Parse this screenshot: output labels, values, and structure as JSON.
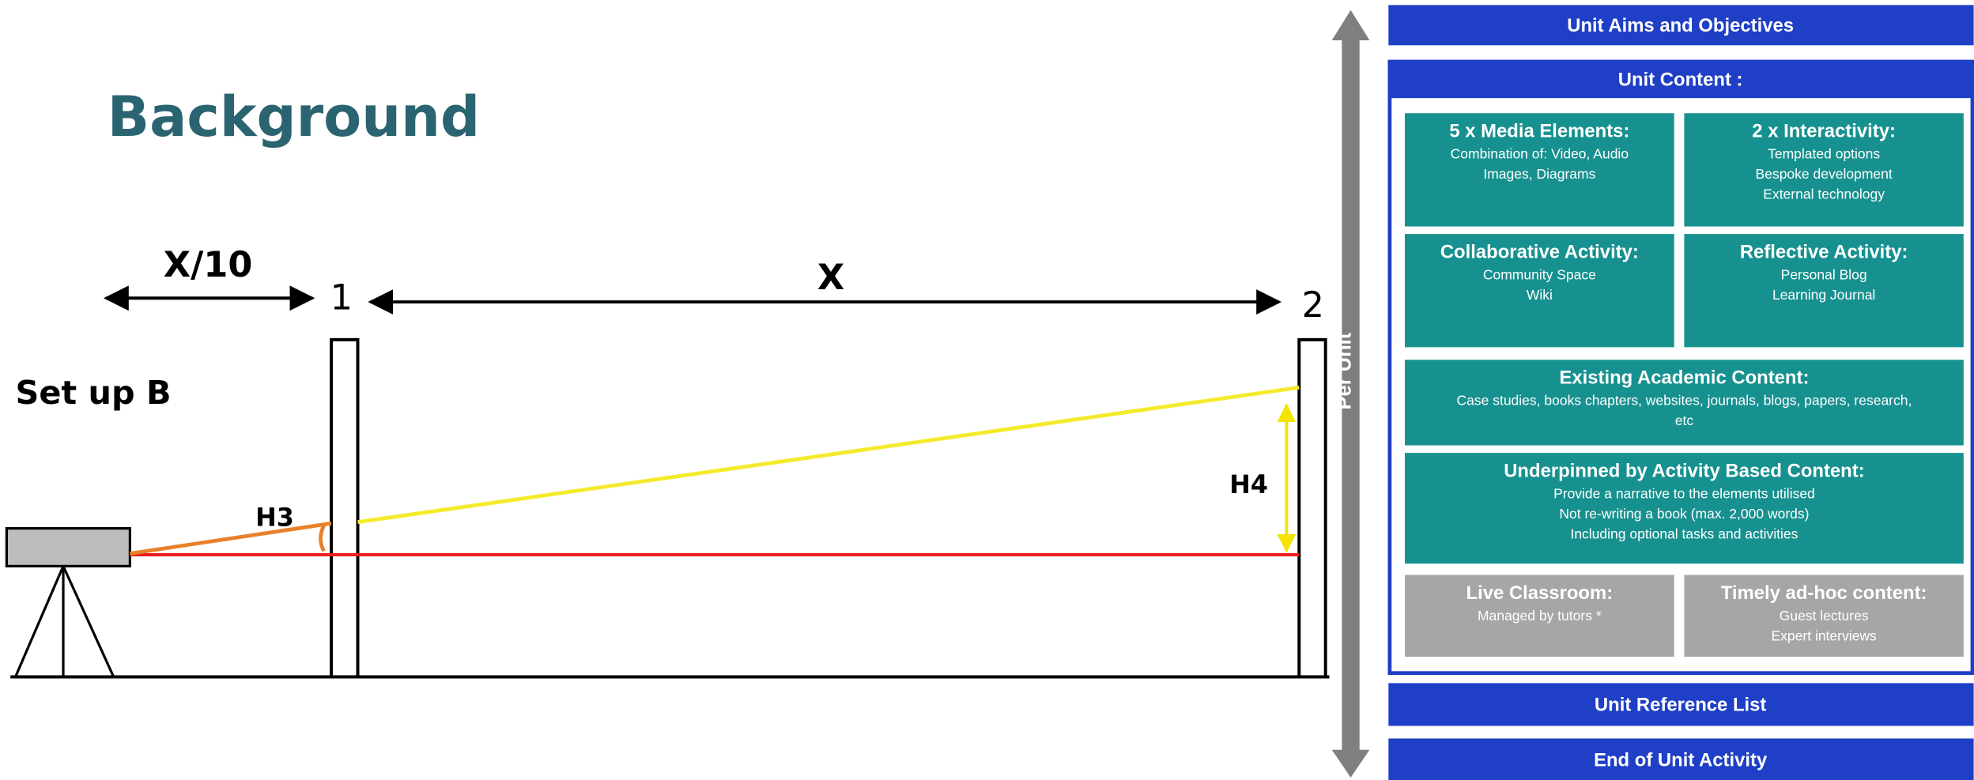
{
  "diagram": {
    "title": "Background",
    "setup": "Set up B",
    "short_distance": "X/10",
    "long_distance": "X",
    "post1": "1",
    "post2": "2",
    "h3": "H3",
    "h4": "H4"
  },
  "panel": {
    "side_label": "Per Unit",
    "top_bar": "Unit Aims and Objectives",
    "content_header": "Unit Content :",
    "boxes": [
      {
        "title": "5 x Media Elements:",
        "lines": [
          "Combination of: Video, Audio",
          "Images, Diagrams"
        ]
      },
      {
        "title": "2 x Interactivity:",
        "lines": [
          "Templated options",
          "Bespoke development",
          "External technology"
        ]
      },
      {
        "title": "Collaborative Activity:",
        "lines": [
          "Community Space",
          "Wiki"
        ]
      },
      {
        "title": "Reflective Activity:",
        "lines": [
          "Personal Blog",
          "Learning Journal"
        ]
      },
      {
        "title": "Existing Academic Content:",
        "lines": [
          "Case studies, books chapters, websites, journals, blogs, papers, research,",
          "etc"
        ]
      },
      {
        "title": "Underpinned by Activity Based Content:",
        "lines": [
          "Provide a narrative to the elements utilised",
          "Not re-writing a book (max. 2,000 words)",
          "Including optional tasks and activities"
        ]
      },
      {
        "title": "Live Classroom:",
        "lines": [
          "Managed by tutors *"
        ]
      },
      {
        "title": "Timely ad-hoc content:",
        "lines": [
          "Guest lectures",
          "Expert interviews"
        ]
      }
    ],
    "bottom_bars": [
      "Unit Reference List",
      "End of Unit Activity"
    ]
  }
}
